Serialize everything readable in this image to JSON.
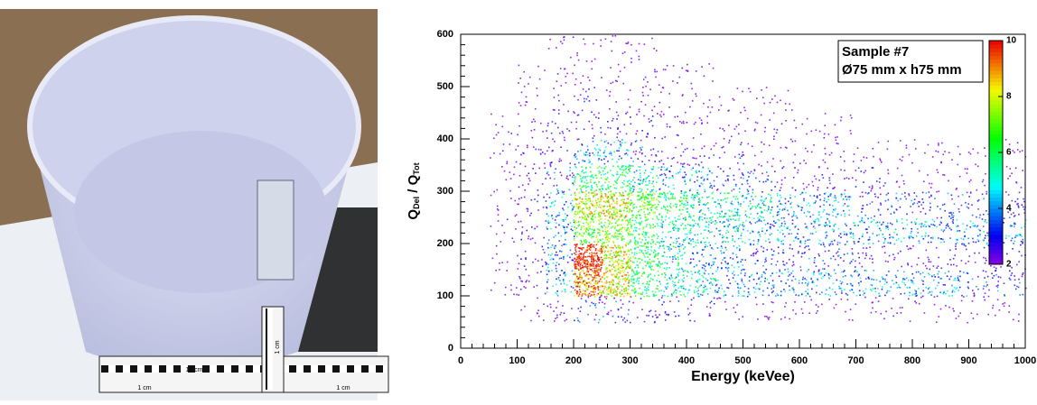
{
  "photo": {
    "ruler_labels": [
      "10 cm",
      "1 cm",
      "1 cm",
      "1 cm"
    ]
  },
  "chart_data": {
    "type": "heatmap",
    "x_label": "Energy (keVee)",
    "y_label": [
      "Q",
      "Del",
      " / Q",
      "Tot"
    ],
    "annotations": [
      "Sample #7",
      "Ø75 mm x h75 mm"
    ],
    "xlim": [
      0,
      1000
    ],
    "xticks": [
      0,
      100,
      200,
      300,
      400,
      500,
      600,
      700,
      800,
      900,
      1000
    ],
    "ylim": [
      0,
      600
    ],
    "yticks": [
      0,
      100,
      200,
      300,
      400,
      500,
      600
    ],
    "zlim": [
      2,
      10
    ],
    "zticks": [
      2,
      4,
      6,
      8,
      10
    ],
    "xbins": [
      0,
      50,
      100,
      150,
      200,
      250,
      300,
      350,
      400,
      450,
      500,
      550,
      600,
      650,
      700,
      750,
      800,
      850,
      900,
      950,
      1000
    ],
    "ybins": [
      0,
      50,
      100,
      150,
      200,
      250,
      300,
      350,
      400,
      450,
      500,
      550,
      600
    ],
    "z": [
      [
        0,
        0,
        0,
        0,
        0,
        0,
        0,
        0,
        0,
        0,
        0,
        0,
        0,
        0,
        0,
        0,
        0,
        0,
        0,
        0
      ],
      [
        0,
        0,
        1,
        2,
        3,
        3,
        2,
        2,
        2,
        1,
        1,
        1,
        1,
        1,
        1,
        1,
        1,
        1,
        1,
        1
      ],
      [
        0,
        1,
        2,
        4,
        9,
        8,
        6,
        5,
        5,
        4,
        4,
        4,
        4,
        4,
        4,
        4,
        4,
        4,
        3,
        3
      ],
      [
        0,
        1,
        2,
        4,
        10,
        8,
        6,
        5,
        4,
        4,
        3,
        3,
        3,
        3,
        2,
        2,
        2,
        2,
        2,
        2
      ],
      [
        0,
        1,
        2,
        4,
        7,
        7,
        6,
        5,
        5,
        5,
        4,
        4,
        4,
        4,
        4,
        4,
        4,
        4,
        4,
        4
      ],
      [
        0,
        1,
        2,
        4,
        8,
        8,
        7,
        6,
        5,
        5,
        5,
        4,
        4,
        4,
        3,
        3,
        3,
        3,
        3,
        3
      ],
      [
        0,
        1,
        2,
        3,
        6,
        6,
        5,
        4,
        4,
        3,
        3,
        2,
        2,
        2,
        2,
        1,
        1,
        1,
        1,
        1
      ],
      [
        0,
        1,
        2,
        2,
        4,
        4,
        3,
        2,
        2,
        2,
        1,
        1,
        1,
        1,
        1,
        1,
        1,
        1,
        1,
        1
      ],
      [
        0,
        1,
        1,
        2,
        2,
        2,
        2,
        2,
        1,
        1,
        1,
        1,
        1,
        1,
        0,
        0,
        0,
        0,
        0,
        0
      ],
      [
        0,
        0,
        1,
        1,
        2,
        1,
        1,
        1,
        1,
        1,
        1,
        1,
        0,
        0,
        0,
        0,
        0,
        0,
        0,
        0
      ],
      [
        0,
        0,
        1,
        1,
        1,
        1,
        1,
        1,
        1,
        0,
        0,
        0,
        0,
        0,
        0,
        0,
        0,
        0,
        0,
        0
      ],
      [
        0,
        0,
        0,
        1,
        1,
        1,
        1,
        0,
        0,
        0,
        0,
        0,
        0,
        0,
        0,
        0,
        0,
        0,
        0,
        0
      ]
    ]
  }
}
